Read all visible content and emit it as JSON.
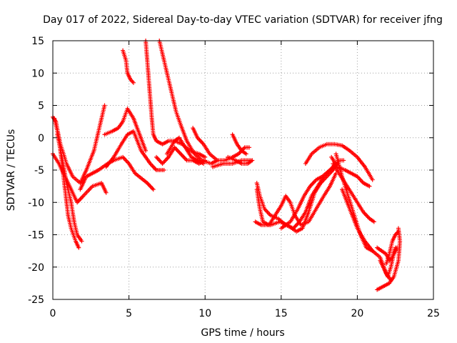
{
  "chart_data": {
    "type": "scatter",
    "title": "Day 017 of 2022, Sidereal Day-to-day VTEC variation (SDTVAR) for receiver jfng",
    "xlabel": "GPS time / hours",
    "ylabel": "SDTVAR / TECUs",
    "xlim": [
      0,
      25
    ],
    "ylim": [
      -25,
      15
    ],
    "xticks": [
      0,
      5,
      10,
      15,
      20,
      25
    ],
    "yticks": [
      -25,
      -20,
      -15,
      -10,
      -5,
      0,
      5,
      10,
      15
    ],
    "grid": true,
    "marker": "plus",
    "color": "#ff0000",
    "series": [
      {
        "name": "s1",
        "points": [
          [
            0,
            -2.5
          ],
          [
            0.4,
            -4
          ],
          [
            0.8,
            -6
          ],
          [
            1.2,
            -8
          ],
          [
            1.6,
            -10
          ],
          [
            2.0,
            -9
          ],
          [
            2.6,
            -7.5
          ],
          [
            3.2,
            -7
          ],
          [
            3.5,
            -8.5
          ]
        ]
      },
      {
        "name": "s2",
        "points": [
          [
            0.0,
            3.2
          ],
          [
            0.2,
            2.5
          ],
          [
            0.4,
            0
          ],
          [
            0.6,
            -4
          ],
          [
            0.8,
            -8
          ],
          [
            1.0,
            -12
          ],
          [
            1.2,
            -14
          ],
          [
            1.5,
            -16
          ],
          [
            1.7,
            -17
          ]
        ]
      },
      {
        "name": "s3",
        "points": [
          [
            0.3,
            0.5
          ],
          [
            0.6,
            -3
          ],
          [
            0.9,
            -7
          ],
          [
            1.2,
            -10
          ],
          [
            1.4,
            -13
          ],
          [
            1.6,
            -15
          ],
          [
            1.9,
            -16
          ]
        ]
      },
      {
        "name": "s4",
        "points": [
          [
            0.1,
            3
          ],
          [
            0.5,
            -1
          ],
          [
            0.9,
            -4
          ],
          [
            1.3,
            -6
          ],
          [
            1.8,
            -7
          ],
          [
            2.2,
            -5
          ],
          [
            2.7,
            -2
          ],
          [
            3.1,
            2
          ],
          [
            3.4,
            5
          ]
        ]
      },
      {
        "name": "s5",
        "points": [
          [
            1.8,
            -8
          ],
          [
            2.2,
            -6
          ],
          [
            2.6,
            -5.5
          ],
          [
            3.0,
            -5
          ],
          [
            3.6,
            -4
          ],
          [
            4.0,
            -3.5
          ],
          [
            4.6,
            -3
          ],
          [
            5.0,
            -4
          ],
          [
            5.4,
            -5.5
          ],
          [
            6.2,
            -7
          ],
          [
            6.6,
            -8
          ]
        ]
      },
      {
        "name": "s6",
        "points": [
          [
            3.4,
            0.5
          ],
          [
            3.9,
            1
          ],
          [
            4.3,
            1.5
          ],
          [
            4.6,
            2.5
          ],
          [
            4.9,
            4.5
          ],
          [
            5.3,
            3
          ],
          [
            5.7,
            0.5
          ],
          [
            6.1,
            -2
          ]
        ]
      },
      {
        "name": "s7",
        "points": [
          [
            3.5,
            -4.5
          ],
          [
            4.0,
            -3
          ],
          [
            4.5,
            -1
          ],
          [
            4.9,
            0.5
          ],
          [
            5.3,
            1
          ],
          [
            5.8,
            -2
          ],
          [
            6.4,
            -4
          ],
          [
            6.8,
            -5
          ],
          [
            7.3,
            -5
          ]
        ]
      },
      {
        "name": "s8",
        "points": [
          [
            4.6,
            13.5
          ],
          [
            4.8,
            12
          ],
          [
            4.9,
            10
          ],
          [
            5.1,
            9
          ],
          [
            5.3,
            8.5
          ]
        ]
      },
      {
        "name": "s9",
        "points": [
          [
            6.1,
            15
          ],
          [
            6.2,
            12
          ],
          [
            6.3,
            9
          ],
          [
            6.4,
            6
          ],
          [
            6.5,
            3
          ],
          [
            6.6,
            0.5
          ],
          [
            6.8,
            -0.5
          ],
          [
            7.2,
            -1
          ],
          [
            7.6,
            -0.5
          ],
          [
            8.0,
            -0.5
          ],
          [
            8.5,
            -1
          ],
          [
            9.0,
            -2
          ],
          [
            9.6,
            -2.5
          ],
          [
            10.0,
            -3
          ]
        ]
      },
      {
        "name": "s10",
        "points": [
          [
            7.0,
            15
          ],
          [
            7.2,
            13
          ],
          [
            7.5,
            10
          ],
          [
            7.8,
            7
          ],
          [
            8.1,
            4
          ],
          [
            8.4,
            2
          ],
          [
            8.8,
            -0.5
          ],
          [
            9.3,
            -2.5
          ],
          [
            9.8,
            -3.5
          ],
          [
            10.4,
            -4
          ],
          [
            10.8,
            -3.5
          ]
        ]
      },
      {
        "name": "s11",
        "points": [
          [
            6.8,
            -3
          ],
          [
            7.2,
            -4
          ],
          [
            7.6,
            -3
          ],
          [
            8.0,
            -1.5
          ],
          [
            8.4,
            -2.5
          ],
          [
            8.8,
            -3.5
          ],
          [
            9.2,
            -3.5
          ],
          [
            9.6,
            -4
          ],
          [
            10.0,
            -3.5
          ]
        ]
      },
      {
        "name": "s12",
        "points": [
          [
            7.5,
            -2.5
          ],
          [
            8.0,
            -0.5
          ],
          [
            8.3,
            0
          ],
          [
            8.7,
            -1.5
          ],
          [
            9.1,
            -3
          ],
          [
            9.5,
            -3.5
          ],
          [
            9.9,
            -4
          ]
        ]
      },
      {
        "name": "s13",
        "points": [
          [
            9.2,
            1.5
          ],
          [
            9.5,
            0
          ],
          [
            9.9,
            -1
          ],
          [
            10.3,
            -2.5
          ],
          [
            10.8,
            -3.5
          ],
          [
            11.3,
            -3.5
          ],
          [
            11.8,
            -3
          ],
          [
            12.2,
            -2.5
          ],
          [
            12.6,
            -1.5
          ],
          [
            12.9,
            -1.5
          ]
        ]
      },
      {
        "name": "s14",
        "points": [
          [
            10.5,
            -4.5
          ],
          [
            11.2,
            -4
          ],
          [
            11.8,
            -4
          ],
          [
            12.4,
            -3.5
          ],
          [
            13.0,
            -3.5
          ]
        ]
      },
      {
        "name": "s15",
        "points": [
          [
            11.5,
            -3
          ],
          [
            12.0,
            -3.5
          ],
          [
            12.4,
            -4
          ],
          [
            12.8,
            -4
          ],
          [
            13.1,
            -3.5
          ]
        ]
      },
      {
        "name": "s16",
        "points": [
          [
            11.8,
            0.5
          ],
          [
            12.1,
            -1
          ],
          [
            12.4,
            -2
          ],
          [
            12.7,
            -2.5
          ]
        ]
      },
      {
        "name": "s17",
        "points": [
          [
            13.4,
            -7
          ],
          [
            13.6,
            -9
          ],
          [
            13.9,
            -11
          ],
          [
            14.3,
            -12
          ],
          [
            14.8,
            -12.5
          ],
          [
            15.3,
            -13.5
          ],
          [
            15.8,
            -14
          ],
          [
            16.2,
            -13
          ],
          [
            16.6,
            -11.5
          ],
          [
            17.0,
            -9
          ],
          [
            17.4,
            -7.5
          ],
          [
            17.8,
            -6
          ],
          [
            18.2,
            -5
          ],
          [
            18.5,
            -4.5
          ]
        ]
      },
      {
        "name": "s18",
        "points": [
          [
            13.4,
            -8
          ],
          [
            13.6,
            -11
          ],
          [
            13.8,
            -13
          ],
          [
            14.2,
            -13.5
          ],
          [
            14.6,
            -12
          ],
          [
            15.0,
            -10.5
          ],
          [
            15.3,
            -9
          ],
          [
            15.6,
            -10
          ],
          [
            15.9,
            -12
          ],
          [
            16.3,
            -13.5
          ],
          [
            16.8,
            -13
          ],
          [
            17.3,
            -11
          ],
          [
            17.8,
            -9
          ],
          [
            18.2,
            -7.5
          ],
          [
            18.6,
            -5.5
          ]
        ]
      },
      {
        "name": "s19",
        "points": [
          [
            13.3,
            -13
          ],
          [
            13.7,
            -13.5
          ],
          [
            14.3,
            -13.5
          ],
          [
            14.9,
            -13
          ],
          [
            15.4,
            -13.5
          ],
          [
            16.0,
            -14.5
          ],
          [
            16.4,
            -14
          ],
          [
            16.8,
            -11.5
          ],
          [
            17.2,
            -8.5
          ],
          [
            17.6,
            -7
          ],
          [
            18.0,
            -6
          ],
          [
            18.4,
            -5
          ],
          [
            18.8,
            -3.5
          ],
          [
            19.1,
            -3.5
          ]
        ]
      },
      {
        "name": "s20",
        "points": [
          [
            15.0,
            -14
          ],
          [
            15.6,
            -13
          ],
          [
            16.1,
            -11
          ],
          [
            16.5,
            -9
          ],
          [
            16.9,
            -7.5
          ],
          [
            17.3,
            -6.5
          ],
          [
            17.7,
            -6
          ],
          [
            18.2,
            -5
          ],
          [
            18.6,
            -4
          ]
        ]
      },
      {
        "name": "s21",
        "points": [
          [
            16.6,
            -4
          ],
          [
            17.0,
            -2.5
          ],
          [
            17.5,
            -1.5
          ],
          [
            18.0,
            -1
          ],
          [
            18.5,
            -1
          ],
          [
            19.0,
            -1.2
          ],
          [
            19.5,
            -2
          ],
          [
            20.0,
            -3
          ],
          [
            20.5,
            -4.5
          ],
          [
            21.0,
            -6.5
          ]
        ]
      },
      {
        "name": "s22",
        "points": [
          [
            18.3,
            -3
          ],
          [
            18.7,
            -4.5
          ],
          [
            19.2,
            -5
          ],
          [
            19.6,
            -5.5
          ],
          [
            20.0,
            -6
          ],
          [
            20.4,
            -7
          ],
          [
            20.8,
            -7.5
          ]
        ]
      },
      {
        "name": "s23",
        "points": [
          [
            18.4,
            -4
          ],
          [
            18.8,
            -5.5
          ],
          [
            19.2,
            -7
          ],
          [
            19.6,
            -8.5
          ],
          [
            20.0,
            -10
          ],
          [
            20.4,
            -11.5
          ],
          [
            20.8,
            -12.5
          ],
          [
            21.1,
            -13
          ]
        ]
      },
      {
        "name": "s24",
        "points": [
          [
            18.6,
            -2.5
          ],
          [
            19.0,
            -6
          ],
          [
            19.4,
            -9
          ],
          [
            19.8,
            -12
          ],
          [
            20.2,
            -15
          ],
          [
            20.6,
            -17
          ],
          [
            21.0,
            -17.5
          ]
        ]
      },
      {
        "name": "s25",
        "points": [
          [
            19.0,
            -8
          ],
          [
            19.5,
            -11
          ],
          [
            20.0,
            -14
          ],
          [
            20.5,
            -16
          ],
          [
            21.0,
            -17.5
          ],
          [
            21.5,
            -18.5
          ],
          [
            21.9,
            -21
          ],
          [
            22.2,
            -22
          ]
        ]
      },
      {
        "name": "s26",
        "points": [
          [
            21.3,
            -23.5
          ],
          [
            21.7,
            -23
          ],
          [
            22.1,
            -22.5
          ],
          [
            22.4,
            -21.5
          ],
          [
            22.7,
            -19
          ],
          [
            22.8,
            -16
          ],
          [
            22.7,
            -14
          ]
        ]
      },
      {
        "name": "s27",
        "points": [
          [
            21.3,
            -17
          ],
          [
            21.6,
            -17.5
          ],
          [
            21.9,
            -18
          ],
          [
            22.1,
            -19
          ],
          [
            22.3,
            -18.5
          ],
          [
            22.5,
            -17
          ]
        ]
      },
      {
        "name": "s28",
        "points": [
          [
            21.9,
            -19.5
          ],
          [
            22.1,
            -18
          ],
          [
            22.3,
            -16
          ],
          [
            22.5,
            -15
          ],
          [
            22.7,
            -14.5
          ]
        ]
      },
      {
        "name": "s29",
        "points": [
          [
            21.5,
            -19
          ],
          [
            21.8,
            -20.5
          ],
          [
            22.0,
            -21.5
          ],
          [
            22.2,
            -20
          ],
          [
            22.4,
            -18
          ],
          [
            22.6,
            -17
          ]
        ]
      }
    ]
  }
}
